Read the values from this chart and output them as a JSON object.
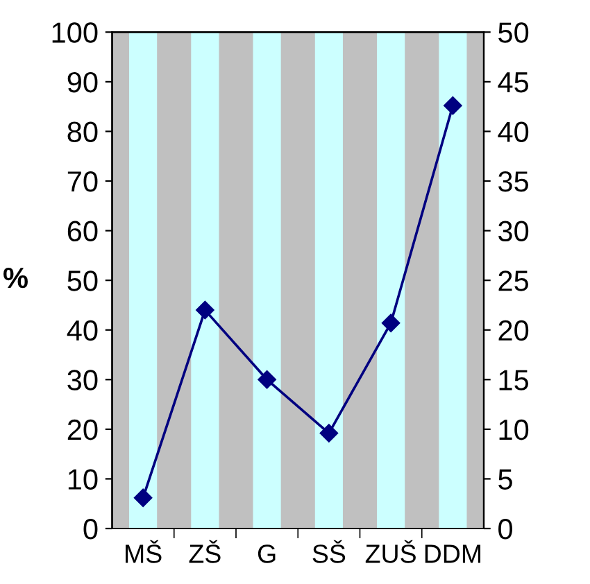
{
  "chart_data": {
    "type": "bar",
    "ylabel": "%",
    "categories": [
      "MŠ",
      "ZŠ",
      "G",
      "SŠ",
      "ZUŠ",
      "DDM"
    ],
    "series": [
      {
        "color": "#ccffff",
        "values": [
          100,
          100,
          100,
          100,
          100,
          100
        ]
      },
      {
        "type": "line",
        "axis": "y2",
        "color": "#000080",
        "marker": "diamond",
        "values": [
          3.1,
          22,
          15,
          9.6,
          20.7,
          42.6
        ]
      }
    ],
    "ylim": [
      0,
      100
    ],
    "yticks": [
      0,
      10,
      20,
      30,
      40,
      50,
      60,
      70,
      80,
      90,
      100
    ],
    "y2lim": [
      0,
      50
    ],
    "y2ticks": [
      0,
      5,
      10,
      15,
      20,
      25,
      30,
      35,
      40,
      45,
      50
    ],
    "grid": false,
    "legend": false
  }
}
